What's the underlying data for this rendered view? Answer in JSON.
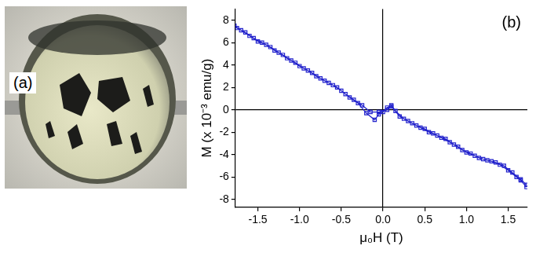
{
  "photo": {
    "label": "(a)"
  },
  "chart_data": {
    "type": "scatter",
    "annotation": "(b)",
    "x_label": "μ₀H (T)",
    "y_label": "M (x 10⁻³ emu/g)",
    "x": [
      1.72,
      1.65,
      1.6,
      1.5,
      1.4,
      1.3,
      1.2,
      1.1,
      1.0,
      0.9,
      0.8,
      0.7,
      0.6,
      0.5,
      0.4,
      0.3,
      0.2,
      0.1,
      0.05,
      0.0,
      -0.05,
      -0.1,
      -0.2,
      -0.3,
      -0.4,
      -0.5,
      -0.6,
      -0.7,
      -0.8,
      -0.9,
      -1.0,
      -1.1,
      -1.2,
      -1.3,
      -1.4,
      -1.5,
      -1.6,
      -1.7,
      -1.78,
      -1.75,
      -1.65,
      -1.55,
      -1.45,
      -1.35,
      -1.25,
      -1.15,
      -1.05,
      -0.95,
      -0.85,
      -0.75,
      -0.65,
      -0.55,
      -0.45,
      -0.35,
      -0.25,
      -0.15,
      -0.05,
      0.05,
      0.1,
      0.15,
      0.25,
      0.35,
      0.45,
      0.55,
      0.65,
      0.75,
      0.85,
      0.95,
      1.05,
      1.15,
      1.25,
      1.35,
      1.45,
      1.55,
      1.65,
      1.72
    ],
    "values": [
      -6.9,
      -6.3,
      -6.0,
      -5.4,
      -4.9,
      -4.6,
      -4.4,
      -4.1,
      -3.8,
      -3.3,
      -2.9,
      -2.5,
      -2.1,
      -1.7,
      -1.4,
      -1.0,
      -0.6,
      0.3,
      0.2,
      -0.2,
      -0.4,
      -0.9,
      -0.3,
      0.6,
      1.1,
      1.7,
      2.2,
      2.6,
      3.0,
      3.5,
      3.9,
      4.4,
      4.9,
      5.3,
      5.8,
      6.1,
      6.6,
      7.1,
      7.5,
      7.3,
      6.9,
      6.4,
      6.0,
      5.6,
      5.1,
      4.6,
      4.2,
      3.7,
      3.3,
      2.8,
      2.4,
      2.0,
      1.4,
      0.9,
      0.4,
      -0.2,
      -0.2,
      0.0,
      0.4,
      -0.1,
      -0.8,
      -1.2,
      -1.6,
      -2.0,
      -2.3,
      -2.6,
      -3.1,
      -3.6,
      -3.9,
      -4.3,
      -4.5,
      -4.7,
      -5.0,
      -5.6,
      -6.2,
      -6.7
    ],
    "color": "#2222cc",
    "marker": "square",
    "line_style": "solid",
    "xlim": [
      -1.77,
      1.73
    ],
    "xticks": [
      -1.5,
      {
        "value": -1,
        "label": "-1.0"
      },
      -0.5,
      {
        "value": 0,
        "label": "0.0"
      },
      0.5,
      {
        "value": 1,
        "label": "1.0"
      },
      1.5
    ],
    "ylim": [
      -8.7,
      9
    ],
    "yticks": [
      -8,
      -6,
      -4,
      -2,
      0,
      2,
      4,
      6,
      8
    ],
    "legend": "none"
  }
}
